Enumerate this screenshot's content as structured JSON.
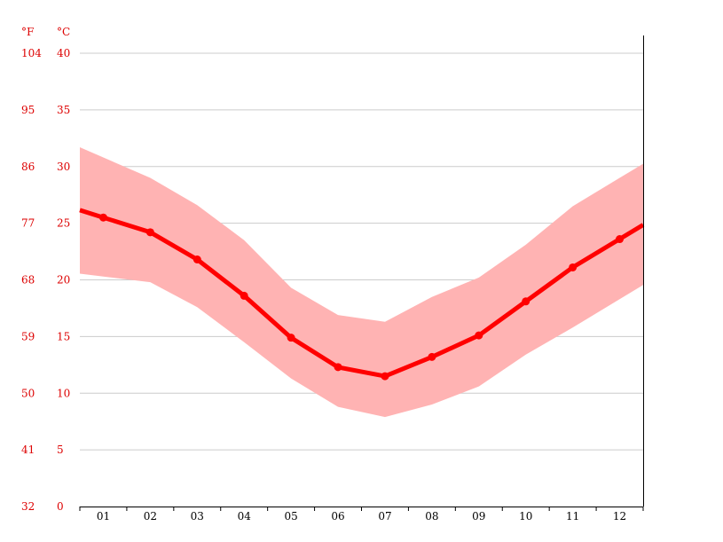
{
  "chart_data": {
    "type": "line",
    "title": "",
    "xlabel": "",
    "ylabel": "",
    "categories": [
      "01",
      "02",
      "03",
      "04",
      "05",
      "06",
      "07",
      "08",
      "09",
      "10",
      "11",
      "12"
    ],
    "units": {
      "fahrenheit": "°F",
      "celsius": "°C"
    },
    "ylim": [
      0,
      40
    ],
    "y_ticks_celsius": [
      "40",
      "35",
      "30",
      "25",
      "20",
      "15",
      "10",
      "5",
      "0"
    ],
    "y_ticks_fahrenheit": [
      "104",
      "95",
      "86",
      "77",
      "68",
      "59",
      "50",
      "41",
      "32"
    ],
    "grid": true,
    "series": [
      {
        "values": [
          25.5,
          24.2,
          21.8,
          18.6,
          14.9,
          12.3,
          11.5,
          13.2,
          15.1,
          18.1,
          21.1,
          23.6
        ]
      }
    ],
    "range": {
      "max": [
        30.8,
        29.0,
        26.6,
        23.5,
        19.3,
        16.9,
        16.3,
        18.5,
        20.2,
        23.1,
        26.5,
        29.0
      ],
      "min": [
        20.3,
        19.8,
        17.6,
        14.5,
        11.3,
        8.8,
        7.9,
        9.0,
        10.6,
        13.4,
        15.8,
        18.3
      ]
    },
    "colors": {
      "line": "#ff0000",
      "band": "#ffb3b3",
      "labels": "#dd0000",
      "grid": "#cccccc",
      "axis": "#000000"
    }
  }
}
